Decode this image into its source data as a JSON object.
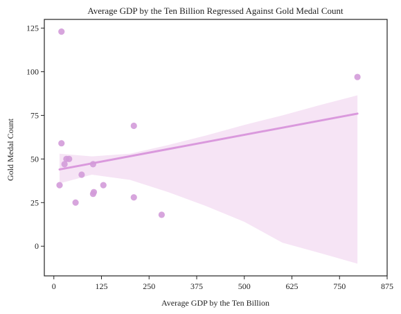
{
  "chart_data": {
    "type": "scatter",
    "title": "Average GDP by the Ten Billion Regressed Against Gold Medal Count",
    "xlabel": "Average GDP by the Ten Billion",
    "ylabel": "Gold Medal Count",
    "xlim": [
      -25,
      875
    ],
    "ylim": [
      -17,
      130
    ],
    "xticks": [
      0,
      125,
      250,
      375,
      500,
      625,
      750,
      875
    ],
    "yticks": [
      0,
      25,
      50,
      75,
      100,
      125
    ],
    "grid": false,
    "colors": {
      "points": "#d39bd9",
      "line": "#da99dd",
      "band": "#f6e4f5",
      "axis": "#222222"
    },
    "points": [
      {
        "x": 20,
        "y": 123
      },
      {
        "x": 797,
        "y": 97
      },
      {
        "x": 210,
        "y": 69
      },
      {
        "x": 20,
        "y": 59
      },
      {
        "x": 33,
        "y": 50
      },
      {
        "x": 40,
        "y": 50
      },
      {
        "x": 28,
        "y": 47
      },
      {
        "x": 103,
        "y": 47
      },
      {
        "x": 73,
        "y": 41
      },
      {
        "x": 15,
        "y": 35
      },
      {
        "x": 130,
        "y": 35
      },
      {
        "x": 105,
        "y": 31
      },
      {
        "x": 103,
        "y": 30
      },
      {
        "x": 210,
        "y": 28
      },
      {
        "x": 57,
        "y": 25
      },
      {
        "x": 283,
        "y": 18
      }
    ],
    "regression": {
      "x": [
        15,
        797
      ],
      "y": [
        44,
        76
      ]
    },
    "confidence_band": {
      "x": [
        15,
        100,
        200,
        300,
        400,
        500,
        600,
        700,
        797
      ],
      "upper": [
        53,
        51.5,
        53,
        58,
        63.5,
        69.5,
        75,
        81,
        86.5
      ],
      "lower": [
        36,
        41,
        38,
        31,
        23,
        14,
        2,
        -4,
        -10
      ]
    }
  }
}
